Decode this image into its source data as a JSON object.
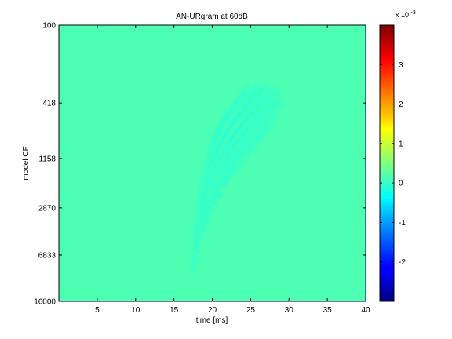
{
  "chart_data": {
    "type": "heatmap",
    "title": "AN-URgram at 60dB",
    "xlabel": "time [ms]",
    "ylabel": "model CF",
    "xlim": [
      0,
      40
    ],
    "x_ticks": [
      5,
      10,
      15,
      20,
      25,
      30,
      35,
      40
    ],
    "y_scale": "log",
    "ylim": [
      100,
      16000
    ],
    "y_tick_labels": [
      "100",
      "418",
      "1158",
      "2870",
      "6833",
      "16000"
    ],
    "colorbar": {
      "range": [
        -0.003,
        0.004
      ],
      "ticks": [
        -2,
        -1,
        0,
        1,
        2,
        3
      ],
      "multiplier_base": "x 10",
      "multiplier_exp": "-3",
      "colormap": "jet"
    },
    "grid": false
  }
}
